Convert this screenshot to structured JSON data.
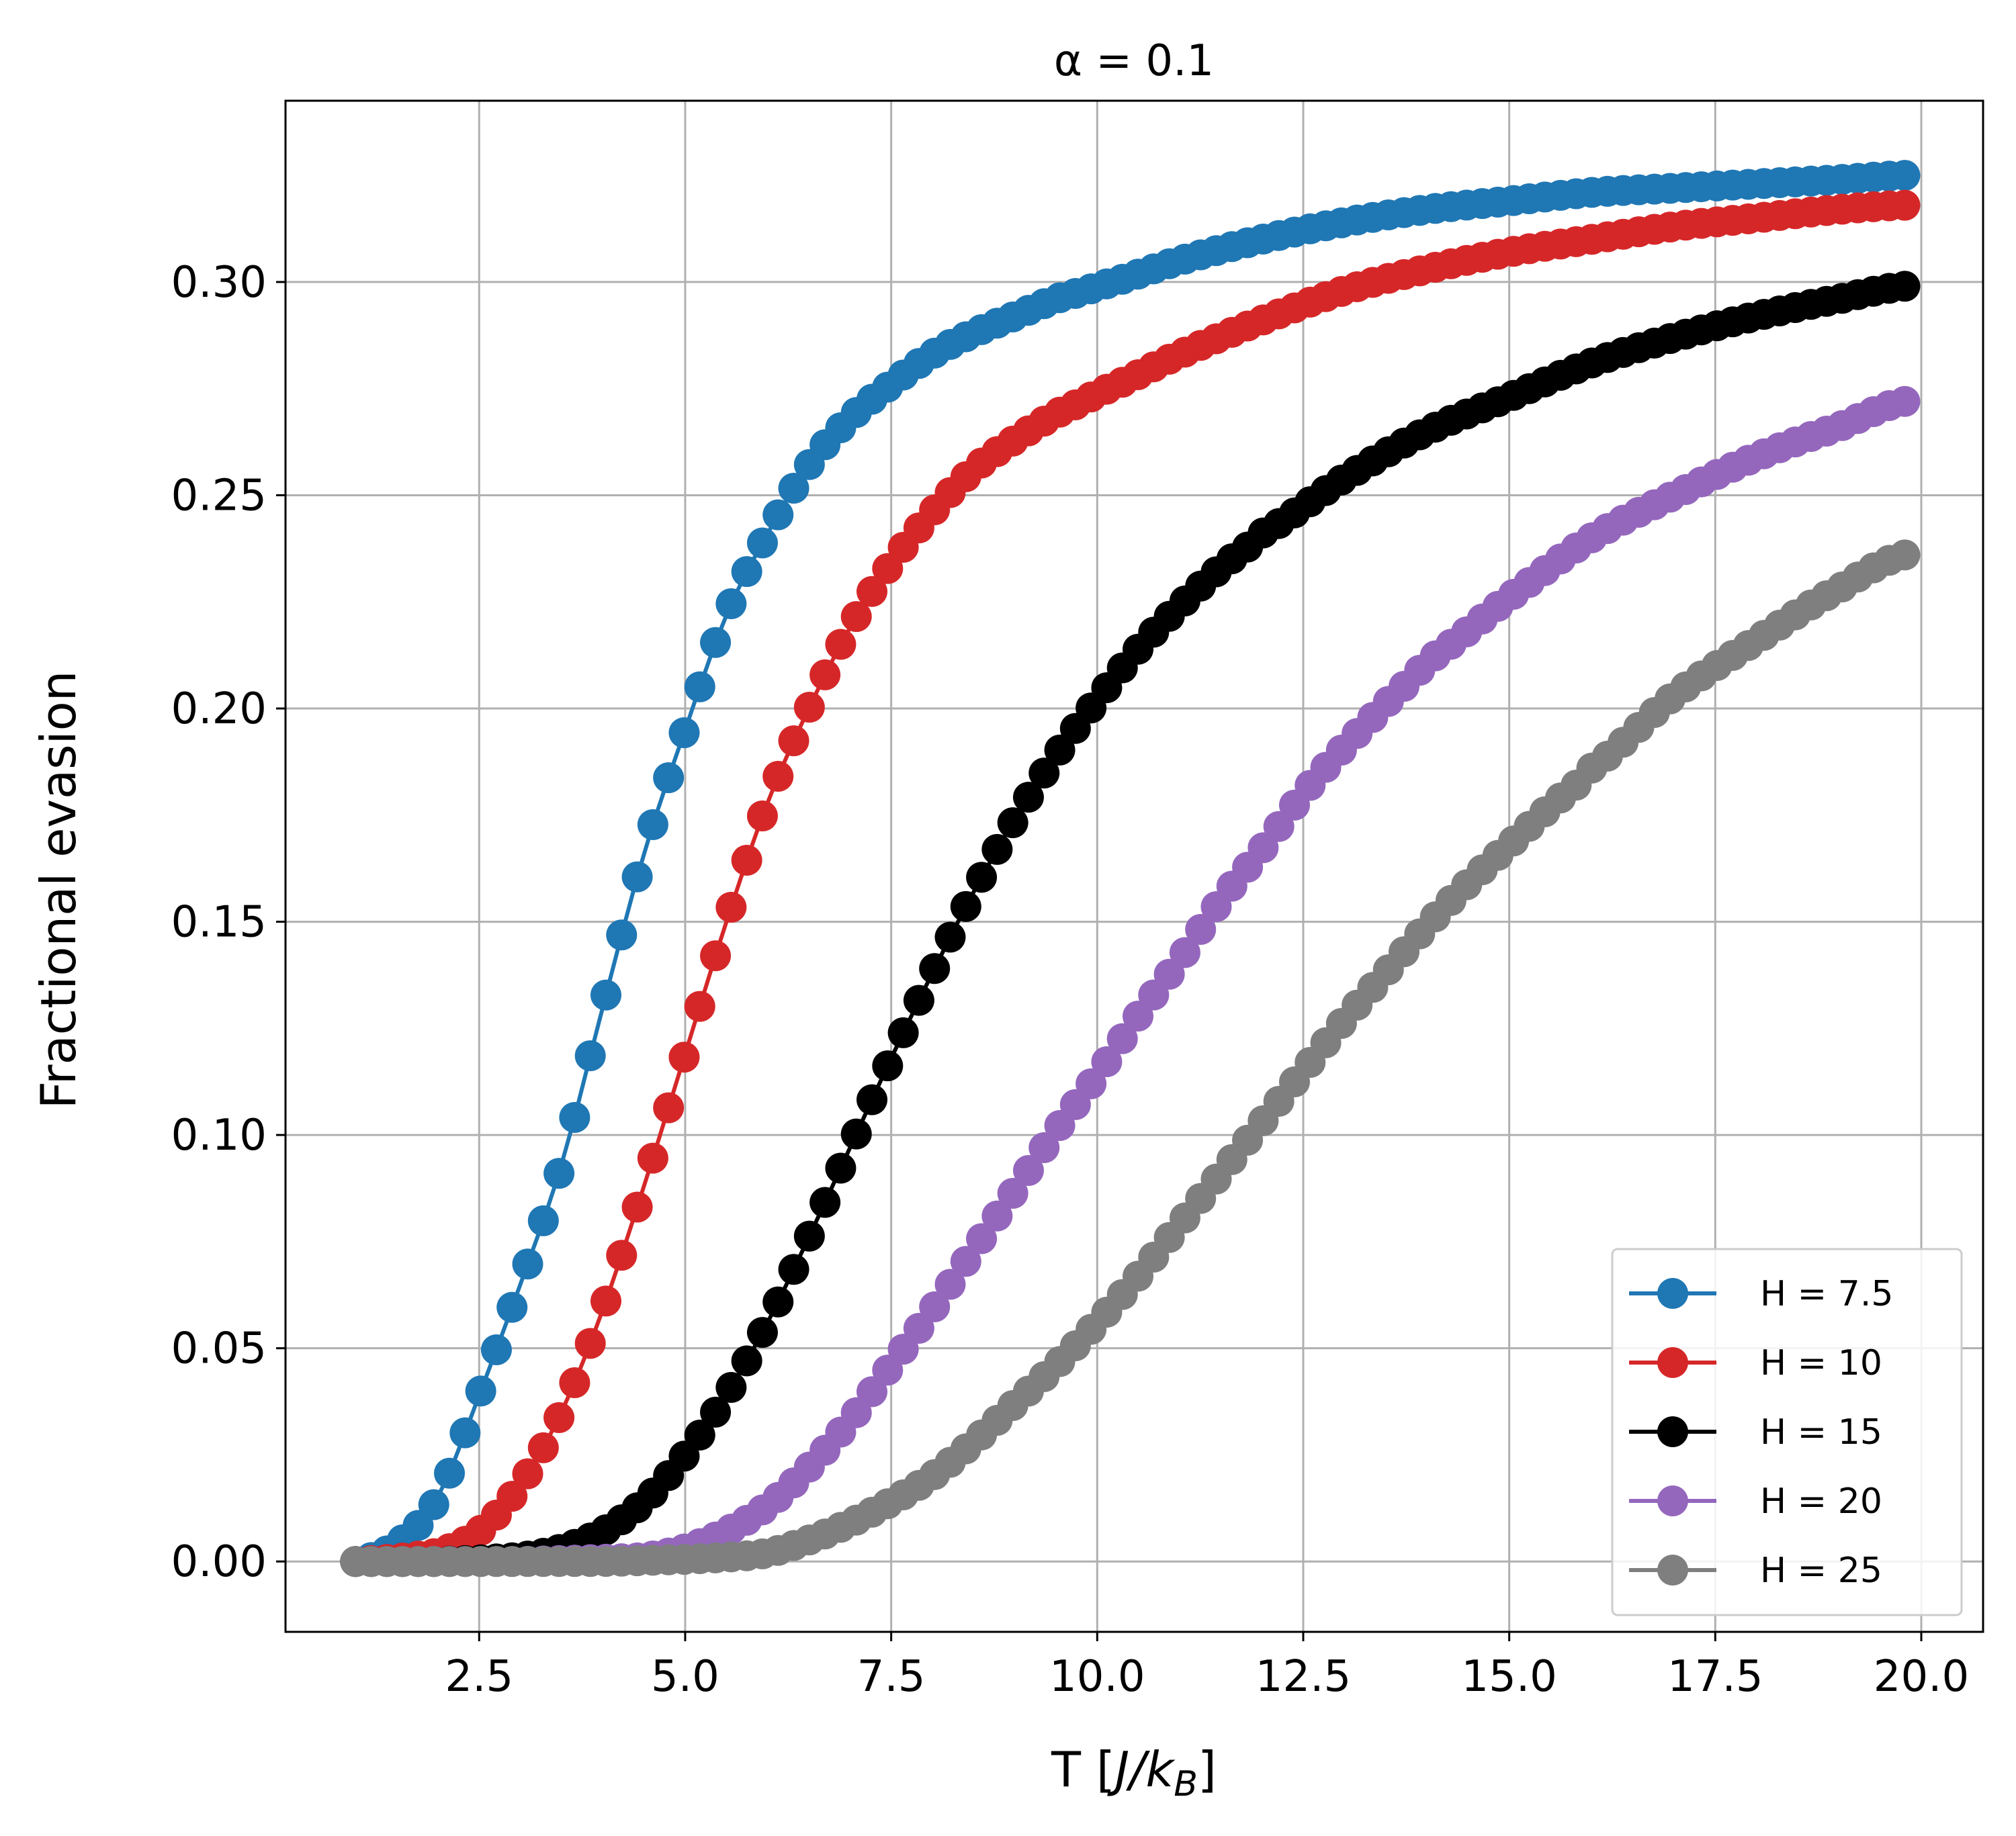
{
  "chart_data": {
    "type": "line",
    "title": "α = 0.1",
    "xlabel": "T [J/k_B]",
    "ylabel": "Fractional evasion",
    "xlim": [
      0.15,
      20.75
    ],
    "ylim": [
      -0.0165,
      0.3425
    ],
    "xticks": [
      2.5,
      5.0,
      7.5,
      10.0,
      12.5,
      15.0,
      17.5,
      20.0
    ],
    "xtick_labels": [
      "2.5",
      "5.0",
      "7.5",
      "10.0",
      "12.5",
      "15.0",
      "17.5",
      "20.0"
    ],
    "yticks": [
      0.0,
      0.05,
      0.1,
      0.15,
      0.2,
      0.25,
      0.3
    ],
    "ytick_labels": [
      "0.00",
      "0.05",
      "0.10",
      "0.15",
      "0.20",
      "0.25",
      "0.30"
    ],
    "grid": true,
    "legend_position": "lower-right",
    "series": [
      {
        "name": "H = 7.5",
        "color": "#1f77b4",
        "x": [
          1.0,
          1.5,
          2.0,
          2.5,
          3.0,
          3.5,
          4.0,
          4.5,
          5.0,
          5.5,
          6.0,
          6.5,
          7.0,
          7.5,
          8.0,
          8.5,
          9.0,
          9.5,
          10.0,
          11.0,
          12.0,
          13.0,
          14.0,
          15.0,
          16.0,
          17.0,
          18.0,
          19.0,
          19.8
        ],
        "y": [
          0.0,
          0.004,
          0.015,
          0.039,
          0.065,
          0.093,
          0.13,
          0.166,
          0.195,
          0.222,
          0.241,
          0.257,
          0.268,
          0.276,
          0.283,
          0.288,
          0.292,
          0.296,
          0.299,
          0.305,
          0.31,
          0.314,
          0.317,
          0.319,
          0.321,
          0.322,
          0.323,
          0.324,
          0.325
        ]
      },
      {
        "name": "H = 10",
        "color": "#d62728",
        "x": [
          1.0,
          2.0,
          2.5,
          3.0,
          3.5,
          4.0,
          4.5,
          5.0,
          5.5,
          6.0,
          6.5,
          7.0,
          7.5,
          8.0,
          8.5,
          9.0,
          9.5,
          10.0,
          11.0,
          12.0,
          13.0,
          14.0,
          15.0,
          16.0,
          17.0,
          18.0,
          19.0,
          19.8
        ],
        "y": [
          0.0,
          0.002,
          0.007,
          0.018,
          0.035,
          0.059,
          0.088,
          0.119,
          0.15,
          0.178,
          0.2,
          0.219,
          0.234,
          0.246,
          0.256,
          0.263,
          0.269,
          0.274,
          0.283,
          0.291,
          0.298,
          0.303,
          0.307,
          0.31,
          0.313,
          0.315,
          0.317,
          0.318
        ]
      },
      {
        "name": "H = 15",
        "color": "#000000",
        "x": [
          1.0,
          2.0,
          3.0,
          3.5,
          4.0,
          4.5,
          5.0,
          5.5,
          6.0,
          6.5,
          7.0,
          7.5,
          8.0,
          8.5,
          9.0,
          9.5,
          10.0,
          10.5,
          11.0,
          11.5,
          12.0,
          13.0,
          14.0,
          15.0,
          16.0,
          17.0,
          18.0,
          19.0,
          19.8
        ],
        "y": [
          0.0,
          0.0,
          0.001,
          0.003,
          0.007,
          0.014,
          0.025,
          0.039,
          0.056,
          0.076,
          0.097,
          0.118,
          0.138,
          0.157,
          0.174,
          0.189,
          0.202,
          0.214,
          0.224,
          0.233,
          0.241,
          0.254,
          0.265,
          0.273,
          0.281,
          0.287,
          0.292,
          0.296,
          0.299
        ]
      },
      {
        "name": "H = 20",
        "color": "#9467bd",
        "x": [
          1.0,
          3.0,
          4.0,
          4.5,
          5.0,
          5.5,
          6.0,
          6.5,
          7.0,
          7.5,
          8.0,
          8.5,
          9.0,
          9.5,
          10.0,
          10.5,
          11.0,
          11.5,
          12.0,
          12.5,
          13.0,
          13.5,
          14.0,
          15.0,
          16.0,
          17.0,
          18.0,
          19.0,
          19.8
        ],
        "y": [
          0.0,
          0.0,
          0.0005,
          0.001,
          0.003,
          0.007,
          0.013,
          0.022,
          0.033,
          0.046,
          0.059,
          0.073,
          0.087,
          0.101,
          0.114,
          0.128,
          0.141,
          0.155,
          0.167,
          0.18,
          0.191,
          0.201,
          0.211,
          0.226,
          0.24,
          0.25,
          0.259,
          0.266,
          0.272
        ]
      },
      {
        "name": "H = 25",
        "color": "#7f7f7f",
        "x": [
          1.0,
          4.0,
          5.0,
          5.5,
          6.0,
          6.5,
          7.0,
          7.5,
          8.0,
          8.5,
          9.0,
          9.5,
          10.0,
          10.5,
          11.0,
          11.5,
          12.0,
          12.5,
          13.0,
          13.5,
          14.0,
          14.5,
          15.0,
          15.5,
          16.0,
          17.0,
          18.0,
          19.0,
          19.8
        ],
        "y": [
          0.0,
          0.0,
          0.0005,
          0.001,
          0.002,
          0.005,
          0.009,
          0.014,
          0.02,
          0.028,
          0.037,
          0.046,
          0.056,
          0.067,
          0.079,
          0.091,
          0.103,
          0.115,
          0.127,
          0.138,
          0.149,
          0.159,
          0.168,
          0.177,
          0.186,
          0.203,
          0.216,
          0.228,
          0.236
        ]
      }
    ]
  }
}
